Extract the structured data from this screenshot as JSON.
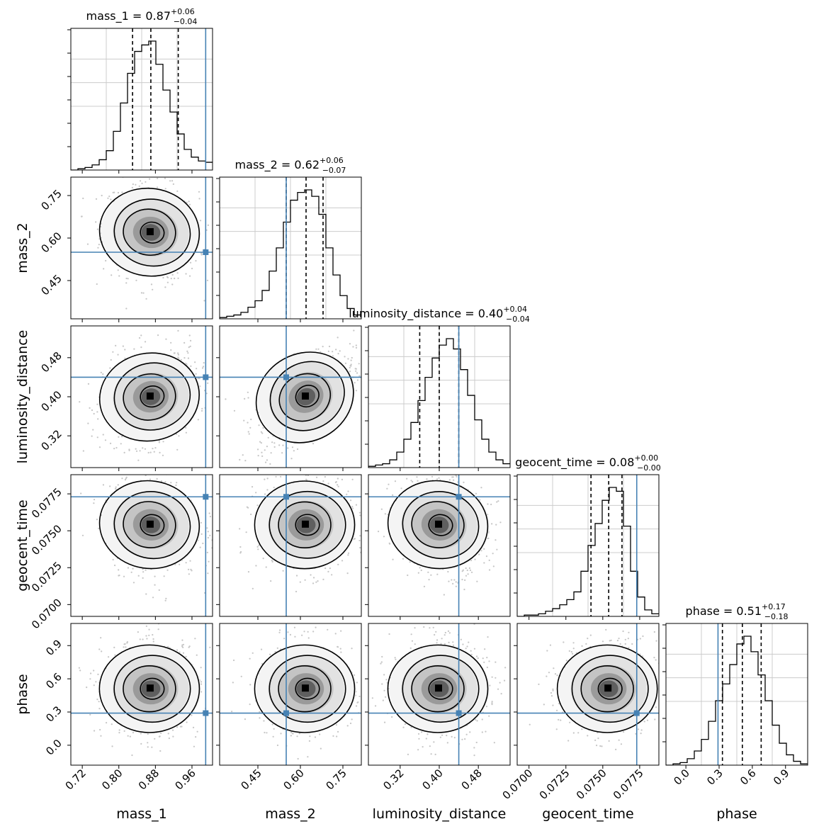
{
  "chart_data": {
    "type": "corner",
    "parameters": [
      "mass_1",
      "mass_2",
      "luminosity_distance",
      "geocent_time",
      "phase"
    ],
    "titles": [
      {
        "param": "mass_1",
        "label": "mass_1 = ",
        "median": "0.87",
        "plus": "+0.06",
        "minus": "−0.04"
      },
      {
        "param": "mass_2",
        "label": "mass_2 = ",
        "median": "0.62",
        "plus": "+0.06",
        "minus": "−0.07"
      },
      {
        "param": "luminosity_distance",
        "label": "luminosity_distance = ",
        "median": "0.40",
        "plus": "+0.04",
        "minus": "−0.04"
      },
      {
        "param": "geocent_time",
        "label": "geocent_time = ",
        "median": "0.08",
        "plus": "+0.00",
        "minus": "−0.00"
      },
      {
        "param": "phase",
        "label": "phase = ",
        "median": "0.51",
        "plus": "+0.17",
        "minus": "−0.18"
      }
    ],
    "xlabels": [
      "mass_1",
      "mass_2",
      "luminosity_distance",
      "geocent_time",
      "phase"
    ],
    "ylabels": [
      "mass_2",
      "luminosity_distance",
      "geocent_time",
      "phase"
    ],
    "ranges": [
      [
        0.695,
        1.005
      ],
      [
        0.315,
        0.815
      ],
      [
        0.255,
        0.545
      ],
      [
        0.0692,
        0.0788
      ],
      [
        -0.18,
        1.1
      ]
    ],
    "ticks": [
      {
        "values": [
          0.72,
          0.8,
          0.88,
          0.96
        ],
        "labels": [
          "0.72",
          "0.80",
          "0.88",
          "0.96"
        ]
      },
      {
        "values": [
          0.45,
          0.6,
          0.75
        ],
        "labels": [
          "0.45",
          "0.60",
          "0.75"
        ]
      },
      {
        "values": [
          0.32,
          0.4,
          0.48
        ],
        "labels": [
          "0.32",
          "0.40",
          "0.48"
        ]
      },
      {
        "values": [
          0.07,
          0.0725,
          0.075,
          0.0775
        ],
        "labels": [
          "0.0700",
          "0.0725",
          "0.0750",
          "0.0775"
        ]
      },
      {
        "values": [
          0.0,
          0.3,
          0.6,
          0.9
        ],
        "labels": [
          "0.0",
          "0.3",
          "0.6",
          "0.9"
        ]
      }
    ],
    "truths": [
      0.99,
      0.55,
      0.44,
      0.0773,
      0.29
    ],
    "quantiles": [
      {
        "lower": 0.83,
        "median": 0.87,
        "upper": 0.93
      },
      {
        "lower": 0.55,
        "median": 0.62,
        "upper": 0.68
      },
      {
        "lower": 0.36,
        "median": 0.4,
        "upper": 0.44
      },
      {
        "lower": 0.0742,
        "median": 0.0754,
        "upper": 0.0763
      },
      {
        "lower": 0.33,
        "median": 0.51,
        "upper": 0.68
      }
    ],
    "histograms": [
      [
        0.0,
        0.01,
        0.02,
        0.04,
        0.08,
        0.15,
        0.3,
        0.52,
        0.75,
        0.92,
        0.97,
        1.0,
        0.82,
        0.62,
        0.45,
        0.28,
        0.16,
        0.1,
        0.07,
        0.06
      ],
      [
        0.01,
        0.02,
        0.03,
        0.05,
        0.09,
        0.14,
        0.22,
        0.37,
        0.55,
        0.75,
        0.92,
        0.98,
        1.0,
        0.95,
        0.81,
        0.55,
        0.34,
        0.18,
        0.08,
        0.03
      ],
      [
        0.01,
        0.02,
        0.03,
        0.06,
        0.12,
        0.22,
        0.35,
        0.52,
        0.7,
        0.85,
        0.95,
        1.0,
        0.92,
        0.76,
        0.56,
        0.37,
        0.22,
        0.12,
        0.06,
        0.03
      ],
      [
        0.0,
        0.01,
        0.01,
        0.02,
        0.04,
        0.06,
        0.09,
        0.13,
        0.19,
        0.35,
        0.55,
        0.72,
        0.9,
        1.0,
        0.97,
        0.7,
        0.35,
        0.15,
        0.05,
        0.02
      ],
      [
        0.0,
        0.01,
        0.02,
        0.05,
        0.11,
        0.2,
        0.34,
        0.5,
        0.63,
        0.78,
        0.94,
        1.0,
        0.88,
        0.7,
        0.5,
        0.31,
        0.17,
        0.08,
        0.03,
        0.01
      ]
    ],
    "grid": true,
    "truth_color": "#4682b4",
    "contour_color": "#000000",
    "scatter_color": "#888888"
  }
}
